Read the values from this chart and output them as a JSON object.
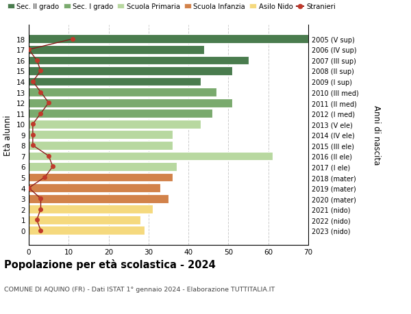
{
  "ages": [
    18,
    17,
    16,
    15,
    14,
    13,
    12,
    11,
    10,
    9,
    8,
    7,
    6,
    5,
    4,
    3,
    2,
    1,
    0
  ],
  "labels_right": [
    "2005 (V sup)",
    "2006 (IV sup)",
    "2007 (III sup)",
    "2008 (II sup)",
    "2009 (I sup)",
    "2010 (III med)",
    "2011 (II med)",
    "2012 (I med)",
    "2013 (V ele)",
    "2014 (IV ele)",
    "2015 (III ele)",
    "2016 (II ele)",
    "2017 (I ele)",
    "2018 (mater)",
    "2019 (mater)",
    "2020 (mater)",
    "2021 (nido)",
    "2022 (nido)",
    "2023 (nido)"
  ],
  "bar_values": [
    70,
    44,
    55,
    51,
    43,
    47,
    51,
    46,
    43,
    36,
    36,
    61,
    37,
    36,
    33,
    35,
    31,
    28,
    29
  ],
  "bar_colors": [
    "#4a7c4e",
    "#4a7c4e",
    "#4a7c4e",
    "#4a7c4e",
    "#4a7c4e",
    "#7aaa6e",
    "#7aaa6e",
    "#7aaa6e",
    "#b8d8a0",
    "#b8d8a0",
    "#b8d8a0",
    "#b8d8a0",
    "#b8d8a0",
    "#d2824a",
    "#d2824a",
    "#d2824a",
    "#f5d97e",
    "#f5d97e",
    "#f5d97e"
  ],
  "stranieri_values": [
    11,
    0,
    2,
    3,
    1,
    3,
    5,
    3,
    1,
    1,
    1,
    5,
    6,
    4,
    0,
    3,
    3,
    2,
    3
  ],
  "legend_labels": [
    "Sec. II grado",
    "Sec. I grado",
    "Scuola Primaria",
    "Scuola Infanzia",
    "Asilo Nido",
    "Stranieri"
  ],
  "legend_colors": [
    "#4a7c4e",
    "#7aaa6e",
    "#b8d8a0",
    "#d2824a",
    "#f5d97e",
    "#c0392b"
  ],
  "title": "Popolazione per età scolastica - 2024",
  "subtitle": "COMUNE DI AQUINO (FR) - Dati ISTAT 1° gennaio 2024 - Elaborazione TUTTITALIA.IT",
  "ylabel_left": "Età alunni",
  "ylabel_right": "Anni di nascita",
  "xlim": [
    0,
    70
  ],
  "xticks": [
    0,
    10,
    20,
    30,
    40,
    50,
    60,
    70
  ],
  "background_color": "#ffffff",
  "grid_color": "#cccccc",
  "bar_height": 0.82,
  "stranieri_color": "#c0392b",
  "stranieri_line_color": "#8b1a1a"
}
